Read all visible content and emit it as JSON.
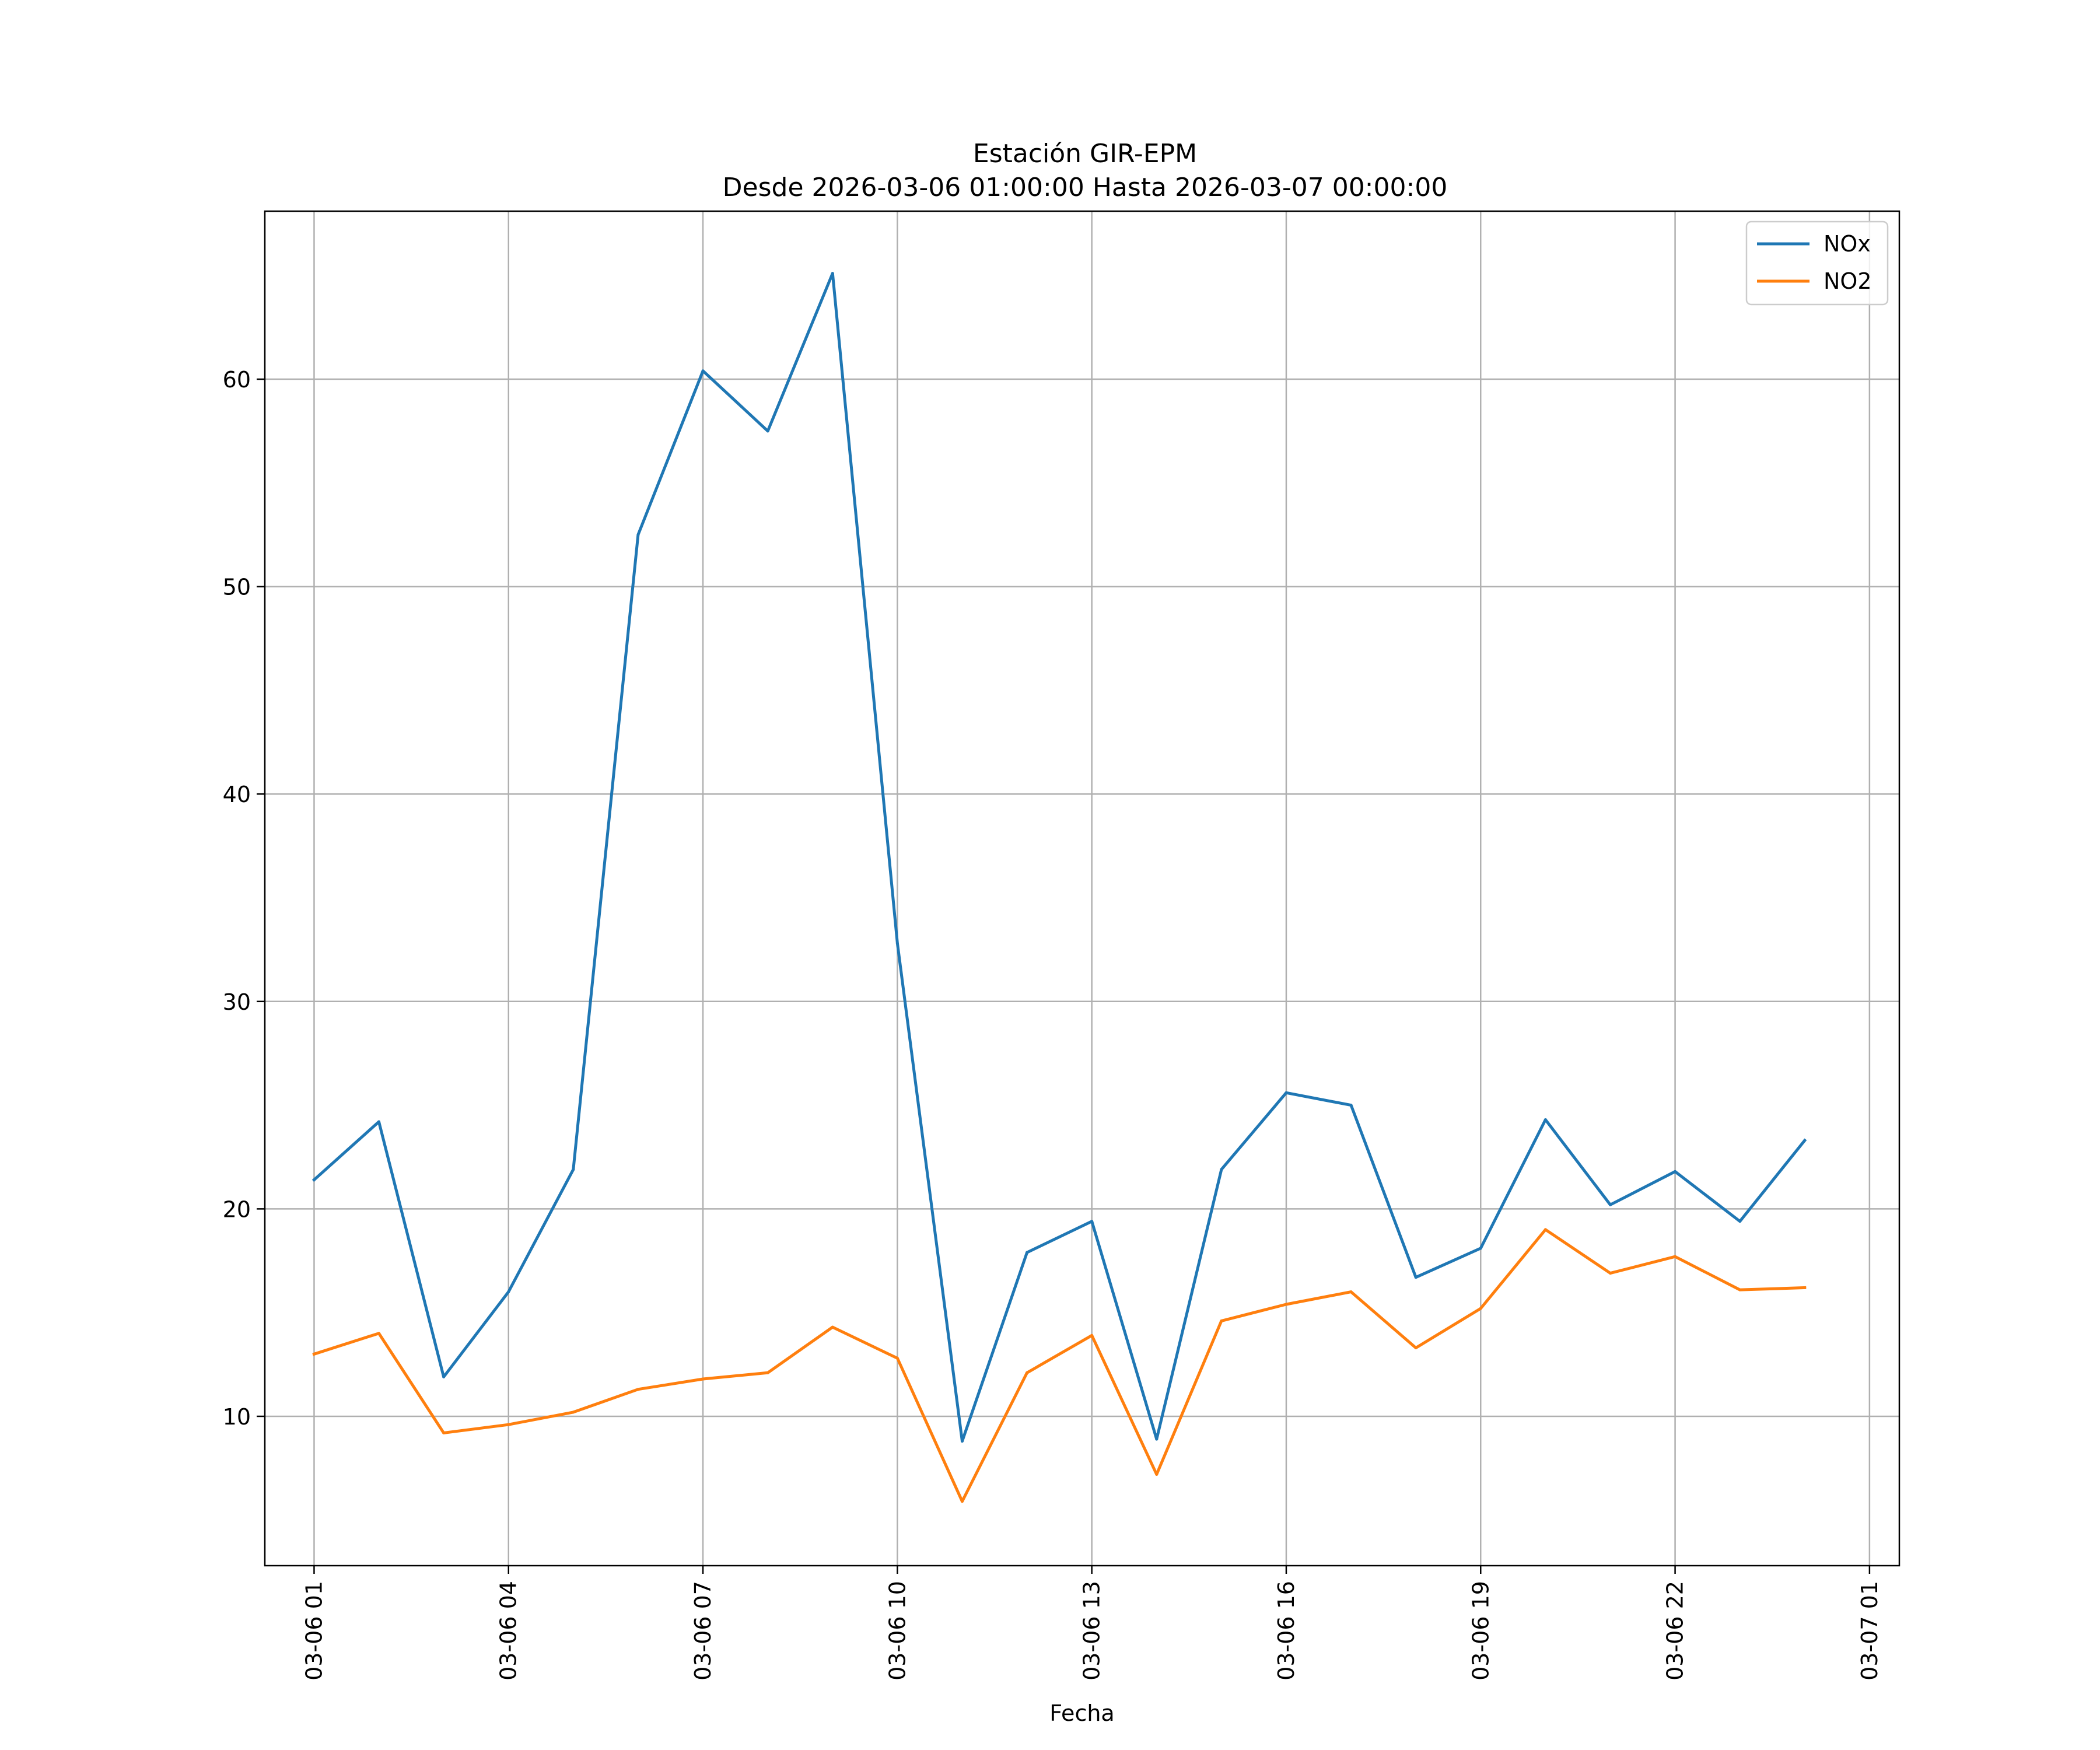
{
  "chart_data": {
    "type": "line",
    "title_line1": "Estación GIR-EPM",
    "title_line2": "Desde 2026-03-06 01:00:00 Hasta 2026-03-07 00:00:00",
    "xlabel": "Fecha",
    "ylabel": "",
    "grid": true,
    "legend_position": "top-right",
    "xlim_hours": [
      -0.76,
      24.46
    ],
    "ylim": [
      2.8,
      68.1
    ],
    "x_hours": [
      0,
      1,
      2,
      3,
      4,
      5,
      6,
      7,
      8,
      9,
      10,
      11,
      12,
      13,
      14,
      15,
      16,
      17,
      18,
      19,
      20,
      21,
      22,
      23
    ],
    "x_tick_hours": [
      0,
      3,
      6,
      9,
      12,
      15,
      18,
      21,
      24
    ],
    "x_tick_labels": [
      "03-06 01",
      "03-06 04",
      "03-06 07",
      "03-06 10",
      "03-06 13",
      "03-06 16",
      "03-06 19",
      "03-06 22",
      "03-07 01"
    ],
    "y_ticks": [
      10,
      20,
      30,
      40,
      50,
      60
    ],
    "y_tick_labels": [
      "10",
      "20",
      "30",
      "40",
      "50",
      "60"
    ],
    "series": [
      {
        "name": "NOx",
        "color": "#1f77b4",
        "values": [
          21.4,
          24.2,
          11.9,
          16.0,
          21.9,
          52.5,
          60.4,
          57.5,
          65.1,
          32.8,
          8.8,
          17.9,
          19.4,
          8.9,
          21.9,
          25.6,
          25.0,
          16.7,
          18.1,
          24.3,
          20.2,
          21.8,
          19.4,
          23.3
        ]
      },
      {
        "name": "NO2",
        "color": "#ff7f0e",
        "values": [
          13.0,
          14.0,
          9.2,
          9.6,
          10.2,
          11.3,
          11.8,
          12.1,
          14.3,
          12.8,
          5.9,
          12.1,
          13.9,
          7.2,
          14.6,
          15.4,
          16.0,
          13.3,
          15.2,
          19.0,
          16.9,
          17.7,
          16.1,
          16.2
        ]
      }
    ]
  }
}
